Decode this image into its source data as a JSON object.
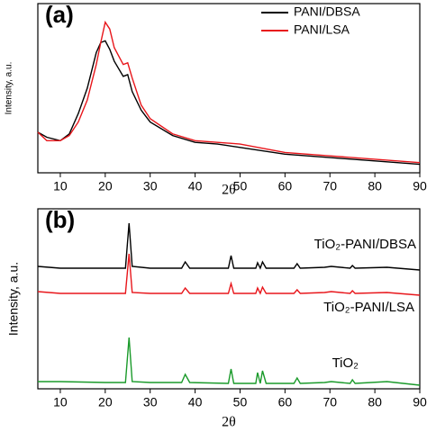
{
  "chart_data": [
    {
      "type": "line",
      "panel_label": "(a)",
      "xlabel": "2θ",
      "ylabel": "Intensity, a.u.",
      "xlim": [
        5,
        90
      ],
      "ylim": [
        0,
        100
      ],
      "xticks": [
        10,
        20,
        30,
        40,
        50,
        60,
        70,
        80,
        90
      ],
      "legend": "upper right",
      "x": [
        5,
        7,
        10,
        12,
        14,
        16,
        18,
        19,
        20,
        21,
        22,
        24,
        25,
        26,
        28,
        30,
        35,
        40,
        45,
        50,
        60,
        70,
        80,
        90
      ],
      "series": [
        {
          "name": "PANI/DBSA",
          "color": "#000000",
          "values": [
            24,
            21,
            19,
            23,
            35,
            50,
            71,
            77,
            78,
            73,
            66,
            57,
            58,
            48,
            37,
            30,
            22,
            18,
            17,
            15,
            11,
            9,
            7,
            5
          ]
        },
        {
          "name": "PANI/LSA",
          "color": "#e8161b",
          "values": [
            24,
            19,
            19,
            22,
            30,
            43,
            64,
            77,
            89,
            85,
            74,
            64,
            65,
            56,
            40,
            32,
            23,
            19,
            18,
            17,
            12,
            10,
            8,
            6
          ]
        }
      ]
    },
    {
      "type": "line",
      "panel_label": "(b)",
      "xlabel": "2θ",
      "ylabel": "Intensity, a.u.",
      "xlim": [
        5,
        90
      ],
      "ylim": [
        0,
        100
      ],
      "xticks": [
        10,
        20,
        30,
        40,
        50,
        60,
        70,
        80,
        90
      ],
      "legend": "inline",
      "x": [
        5,
        10,
        20,
        24.5,
        25.3,
        26,
        30,
        37,
        37.8,
        38.8,
        47.4,
        48,
        48.6,
        53.5,
        53.9,
        54.5,
        55,
        55.8,
        62,
        62.7,
        63.4,
        68.8,
        70.3,
        74.5,
        75,
        75.6,
        82.7,
        90
      ],
      "series": [
        {
          "name": "TiO₂-PANI/DBSA",
          "color": "#000000",
          "values": [
            68,
            67,
            67,
            67,
            92,
            68,
            67,
            67,
            70.5,
            67,
            67,
            74,
            67,
            67,
            70,
            67,
            70.5,
            67,
            67,
            69.5,
            67,
            67.5,
            68,
            67,
            68.5,
            67,
            67.5,
            66
          ]
        },
        {
          "name": "TiO₂-PANI/LSA",
          "color": "#e8161b",
          "values": [
            54,
            53,
            53,
            53,
            75,
            53.5,
            53,
            53,
            56,
            53,
            53,
            58.5,
            53,
            53,
            56,
            53,
            56.5,
            53,
            53,
            55,
            53,
            53.5,
            54,
            53,
            54.5,
            53,
            53.5,
            52
          ]
        },
        {
          "name": "TiO₂",
          "color": "#1a9a2a",
          "values": [
            4,
            4,
            3.5,
            3.5,
            28.5,
            4,
            3.5,
            3.5,
            8,
            3.5,
            3,
            11,
            3,
            3,
            9,
            3,
            10,
            3,
            3,
            6,
            3,
            3.5,
            4,
            3,
            5,
            3,
            4,
            2
          ]
        }
      ]
    }
  ]
}
